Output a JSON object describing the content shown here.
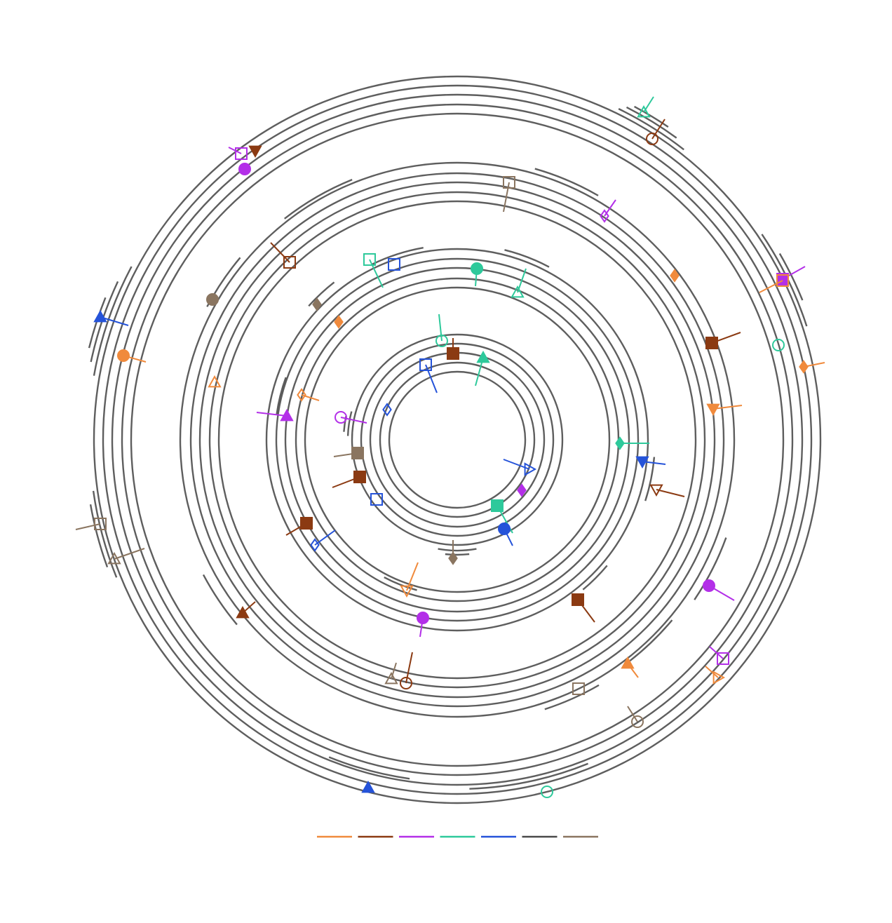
{
  "legend": {
    "colors": [
      "#f08a3c",
      "#8b3a12",
      "#b32fe8",
      "#2ec99b",
      "#2553d9",
      "#4a4a4a",
      "#8a7560"
    ]
  }
}
